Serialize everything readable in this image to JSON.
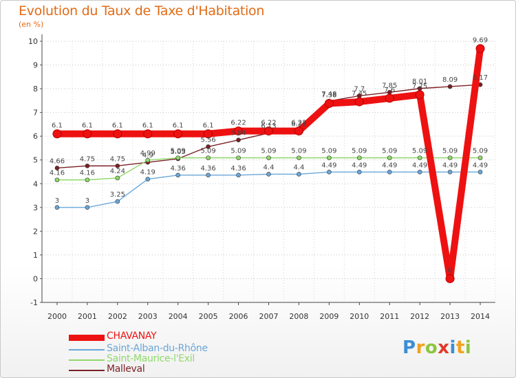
{
  "title": "Evolution du Taux de Taxe d'Habitation",
  "subtitle": "(en %)",
  "logo": {
    "letters": [
      "P",
      "r",
      "o",
      "x",
      "i",
      "t",
      "i"
    ],
    "colors": [
      "#3a8fd6",
      "#f2a21b",
      "#8cc63f",
      "#e23a2c",
      "#3a8fd6",
      "#f2a21b",
      "#8cc63f"
    ]
  },
  "chart_data": {
    "type": "line",
    "title": "Evolution du Taux de Taxe d'Habitation",
    "ylabel": "(en %)",
    "x": [
      "2000",
      "2001",
      "2002",
      "2003",
      "2004",
      "2005",
      "2006",
      "2007",
      "2008",
      "2009",
      "2010",
      "2011",
      "2012",
      "2013",
      "2014"
    ],
    "ylim": [
      -1,
      10
    ],
    "yticks": [
      "-1",
      "0",
      "1",
      "2",
      "3",
      "4",
      "5",
      "6",
      "7",
      "8",
      "9",
      "10"
    ],
    "grid": "horizontal dotted",
    "legend_position": "bottom-left",
    "series": [
      {
        "name": "Malleval",
        "color": "#7b1f24",
        "values": [
          4.66,
          4.75,
          4.75,
          4.9,
          5.05,
          5.56,
          5.84,
          6.13,
          6.22,
          7.48,
          7.7,
          7.85,
          8.01,
          8.09,
          8.17
        ],
        "labels": [
          "4.66",
          "4.75",
          "4.75",
          "4.9",
          "5.05",
          "5.56",
          "5.84",
          "6.13",
          "6.22",
          "7.48",
          "7.7",
          "7.85",
          "8.01",
          "8.09",
          "8.17"
        ]
      },
      {
        "name": "Saint-Maurice-l'Exil",
        "color": "#8fd86a",
        "values": [
          4.16,
          4.16,
          4.24,
          4.99,
          5.09,
          5.09,
          5.09,
          5.09,
          5.09,
          5.09,
          5.09,
          5.09,
          5.09,
          5.09,
          5.09
        ],
        "labels": [
          "4.16",
          "4.16",
          "4.24",
          "4.99",
          "5.09",
          "5.09",
          "5.09",
          "5.09",
          "5.09",
          "5.09",
          "5.09",
          "5.09",
          "5.09",
          "5.09",
          "5.09"
        ]
      },
      {
        "name": "Saint-Alban-du-Rhône",
        "color": "#6aa6d8",
        "values": [
          3,
          3,
          3.25,
          4.19,
          4.36,
          4.36,
          4.36,
          4.4,
          4.4,
          4.49,
          4.49,
          4.49,
          4.49,
          4.49,
          4.49
        ],
        "labels": [
          "3",
          "3",
          "3.25",
          "4.19",
          "4.36",
          "4.36",
          "4.36",
          "4.4",
          "4.4",
          "4.49",
          "4.49",
          "4.49",
          "4.49",
          "4.49",
          "4.49"
        ]
      },
      {
        "name": "CHAVANAY",
        "color": "#ee1111",
        "values": [
          6.1,
          6.1,
          6.1,
          6.1,
          6.1,
          6.1,
          6.22,
          6.22,
          6.22,
          7.38,
          7.45,
          7.6,
          7.75,
          0,
          9.69
        ],
        "labels": [
          "6.1",
          "6.1",
          "6.1",
          "6.1",
          "6.1",
          "6.1",
          "6.22",
          "6.22",
          "6.22",
          "7.38",
          "7.45",
          "7.6",
          "7.75",
          "0",
          "9.69"
        ]
      }
    ]
  },
  "legend": [
    {
      "label": "CHAVANAY",
      "color": "#ee1111"
    },
    {
      "label": "Saint-Alban-du-Rhône",
      "color": "#6aa6d8"
    },
    {
      "label": "Saint-Maurice-l'Exil",
      "color": "#8fd86a"
    },
    {
      "label": "Malleval",
      "color": "#7b1f24"
    }
  ]
}
